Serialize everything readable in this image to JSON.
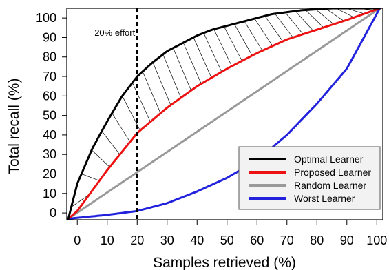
{
  "chart_data": {
    "type": "line",
    "xlabel": "Samples retrieved (%)",
    "ylabel": "Total recall (%)",
    "xlim": [
      -3.5,
      102
    ],
    "ylim": [
      -3.5,
      105
    ],
    "xticks": [
      0,
      10,
      20,
      30,
      40,
      50,
      60,
      70,
      80,
      90,
      100
    ],
    "yticks": [
      0,
      10,
      20,
      30,
      40,
      50,
      60,
      70,
      80,
      90,
      100
    ],
    "grid": false,
    "legend_position": "bottom-right",
    "series": [
      {
        "name": "Optimal Learner",
        "color": "#000000",
        "x": [
          -3,
          0,
          5,
          10,
          15,
          20,
          25,
          30,
          35,
          40,
          45,
          50,
          55,
          60,
          65,
          70,
          75,
          80,
          85,
          90,
          95,
          100,
          101
        ],
        "y": [
          -3,
          15,
          33,
          47,
          60,
          70,
          77,
          83,
          87,
          91,
          94,
          96,
          98,
          100,
          102,
          103,
          104,
          104.5,
          105,
          105,
          105,
          105,
          105
        ]
      },
      {
        "name": "Proposed Learner",
        "color": "#ee1111",
        "x": [
          -3,
          0,
          10,
          20,
          30,
          40,
          50,
          60,
          70,
          80,
          90,
          101
        ],
        "y": [
          -3,
          1,
          22,
          41,
          54,
          65,
          74,
          82,
          89,
          94,
          99,
          105
        ]
      },
      {
        "name": "Random Learner",
        "color": "#999999",
        "x": [
          -3,
          101
        ],
        "y": [
          -3,
          105
        ]
      },
      {
        "name": "Worst Learner",
        "color": "#2222dd",
        "x": [
          -3,
          0,
          10,
          20,
          30,
          40,
          50,
          60,
          70,
          80,
          90,
          101
        ],
        "y": [
          -3,
          -2.5,
          -1,
          1,
          5,
          11,
          18,
          27,
          40,
          56,
          74,
          105
        ]
      }
    ],
    "vline": {
      "x": 20,
      "label": "20% effort"
    },
    "shaded_region": "hatched between Optimal Learner and Proposed Learner"
  }
}
